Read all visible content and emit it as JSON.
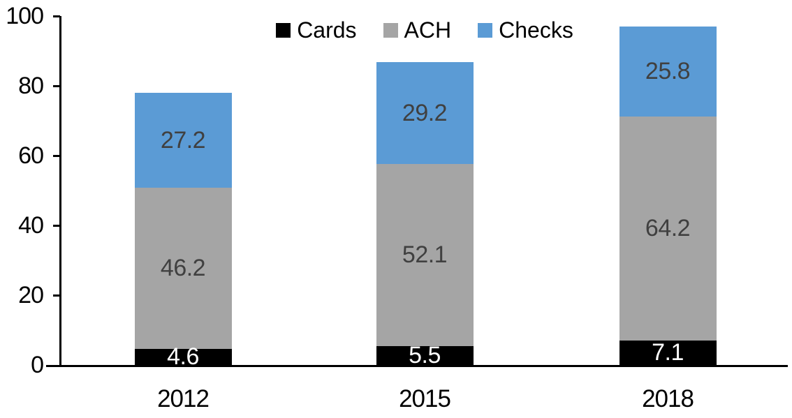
{
  "chart_data": {
    "type": "bar",
    "stacked": true,
    "title": "",
    "xlabel": "",
    "ylabel": "",
    "categories": [
      "2012",
      "2015",
      "2018"
    ],
    "series": [
      {
        "name": "Cards",
        "color": "#000000",
        "label_color": "#ffffff",
        "values": [
          4.6,
          5.5,
          7.1
        ]
      },
      {
        "name": "ACH",
        "color": "#A5A5A5",
        "label_color": "#404040",
        "values": [
          46.2,
          52.1,
          64.2
        ]
      },
      {
        "name": "Checks",
        "color": "#5B9BD5",
        "label_color": "#404040",
        "values": [
          27.2,
          29.2,
          25.8
        ]
      }
    ],
    "ylim": [
      0,
      100
    ],
    "yticks": [
      0,
      20,
      40,
      60,
      80,
      100
    ],
    "grid": false,
    "legend_position": "top-center",
    "legend_labels": [
      "Cards",
      "ACH",
      "Checks"
    ],
    "axis_color": "#000000",
    "background_color": "#ffffff"
  }
}
